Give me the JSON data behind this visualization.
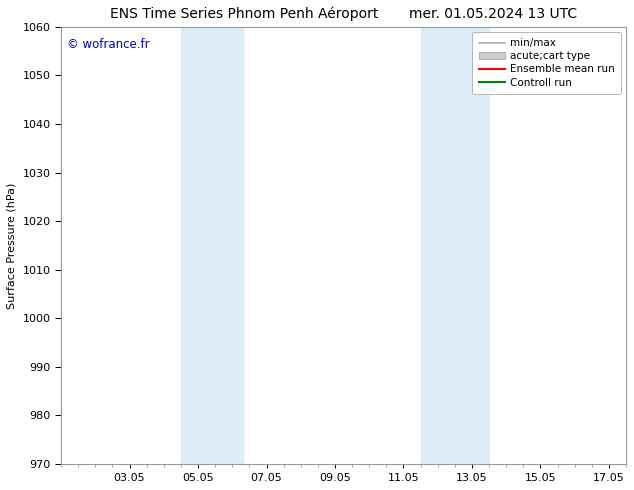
{
  "title_left": "ENS Time Series Phnom Penh Aéroport",
  "title_right": "mer. 01.05.2024 13 UTC",
  "ylabel": "Surface Pressure (hPa)",
  "ylim": [
    970,
    1060
  ],
  "yticks": [
    970,
    980,
    990,
    1000,
    1010,
    1020,
    1030,
    1040,
    1050,
    1060
  ],
  "xtick_labels": [
    "03.05",
    "05.05",
    "07.05",
    "09.05",
    "11.05",
    "13.05",
    "15.05",
    "17.05"
  ],
  "xtick_positions": [
    2,
    4,
    6,
    8,
    10,
    12,
    14,
    16
  ],
  "xlim": [
    0,
    16
  ],
  "shaded_regions": [
    {
      "x_start": 3.5,
      "x_end": 5.3,
      "color": "#ddeef8"
    },
    {
      "x_start": 10.5,
      "x_end": 12.5,
      "color": "#ddeef8"
    }
  ],
  "watermark": "© wofrance.fr",
  "watermark_color": "#0000cc",
  "legend_entries": [
    {
      "label": "min/max",
      "color": "#aaaaaa",
      "lw": 1.2,
      "ls": "-",
      "type": "line"
    },
    {
      "label": "acute;cart type",
      "color": "#cccccc",
      "lw": 8,
      "ls": "-",
      "type": "patch"
    },
    {
      "label": "Ensemble mean run",
      "color": "#ff0000",
      "lw": 1.5,
      "ls": "-",
      "type": "line"
    },
    {
      "label": "Controll run",
      "color": "#008000",
      "lw": 1.5,
      "ls": "-",
      "type": "line"
    }
  ],
  "bg_color": "#ffffff",
  "plot_bg_color": "#ffffff",
  "title_fontsize": 10,
  "axis_fontsize": 8,
  "tick_fontsize": 8,
  "legend_fontsize": 7.5
}
